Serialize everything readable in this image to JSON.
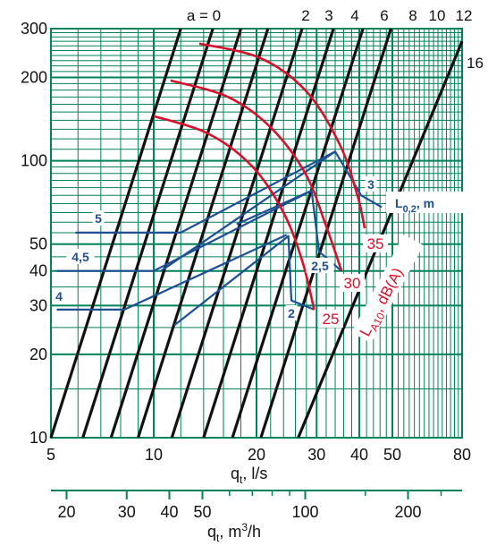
{
  "chart_data": {
    "type": "line",
    "x_scale": "log",
    "y_scale": "log",
    "xlim": [
      5,
      80
    ],
    "ylim": [
      10,
      300
    ],
    "grid": true,
    "grid_color": "#00825a",
    "x_ticks": [
      5,
      10,
      20,
      30,
      40,
      50,
      80
    ],
    "y_ticks": [
      10,
      20,
      30,
      40,
      50,
      100,
      200,
      300
    ],
    "secondary_x_ticks": [
      20,
      30,
      40,
      50,
      100,
      200
    ],
    "xlabel_main": "q",
    "xlabel_sub": "t",
    "xlabel_unit": ", l/s",
    "x2label_main": "q",
    "x2label_sub": "t",
    "x2label_unit": ", m",
    "x2label_sup": "3",
    "x2label_tail": "/h",
    "a_lines": {
      "color": "#111111",
      "series": [
        {
          "name": "a = 0",
          "points": [
            [
              5,
              10
            ],
            [
              12.0,
              300
            ]
          ]
        },
        {
          "name": "2",
          "points": [
            [
              6.2,
              10
            ],
            [
              14.9,
              300
            ]
          ]
        },
        {
          "name": "3",
          "points": [
            [
              7.5,
              10
            ],
            [
              18.0,
              300
            ]
          ]
        },
        {
          "name": "4",
          "points": [
            [
              9.0,
              10
            ],
            [
              21.6,
              300
            ]
          ]
        },
        {
          "name": "6",
          "points": [
            [
              11.3,
              10
            ],
            [
              27.2,
              300
            ]
          ]
        },
        {
          "name": "8",
          "points": [
            [
              14.0,
              10
            ],
            [
              33.6,
              300
            ]
          ]
        },
        {
          "name": "10",
          "points": [
            [
              17.0,
              10
            ],
            [
              41.0,
              300
            ]
          ]
        },
        {
          "name": "12",
          "points": [
            [
              20.6,
              10
            ],
            [
              49.5,
              300
            ]
          ]
        },
        {
          "name": "16",
          "points": [
            [
              26.5,
              10
            ],
            [
              80,
              270
            ]
          ]
        }
      ]
    },
    "noise_curves": {
      "color": "#d8102a",
      "label_main": "L",
      "label_sub": "A10",
      "label_unit": ", dB(A)",
      "series": [
        {
          "name": "25",
          "points": [
            [
              10,
              145
            ],
            [
              14.5,
              125
            ],
            [
              19.5,
              95
            ],
            [
              24,
              65
            ],
            [
              27.3,
              43
            ],
            [
              29.5,
              29
            ]
          ]
        },
        {
          "name": "30",
          "points": [
            [
              11.2,
              195
            ],
            [
              16.5,
              170
            ],
            [
              22,
              132
            ],
            [
              27.8,
              90
            ],
            [
              32,
              58
            ],
            [
              35.5,
              40
            ]
          ]
        },
        {
          "name": "35",
          "points": [
            [
              13.6,
              265
            ],
            [
              20.5,
              235
            ],
            [
              28,
              178
            ],
            [
              35,
              115
            ],
            [
              39.5,
              75
            ],
            [
              41.5,
              57
            ]
          ]
        }
      ]
    },
    "throw_lines": {
      "color": "#1d4f95",
      "label_main": "L",
      "label_sub": "0,2",
      "label_unit": ", m",
      "level_labels": [
        "5",
        "4,5",
        "4",
        "3",
        "2,5",
        "2"
      ],
      "series": [
        {
          "name": "5",
          "points": [
            [
              5.9,
              55
            ],
            [
              12.0,
              55
            ],
            [
              34.0,
              108
            ]
          ]
        },
        {
          "name": "4,5",
          "points": [
            [
              5.2,
              40
            ],
            [
              10.0,
              40
            ],
            [
              29.0,
              78
            ]
          ]
        },
        {
          "name": "4",
          "points": [
            [
              5.2,
              29
            ],
            [
              8.2,
              29
            ],
            [
              24.5,
              54
            ]
          ]
        },
        {
          "name": "2",
          "points": [
            [
              11.5,
              25.5
            ],
            [
              24.8,
              53.5
            ],
            [
              25.3,
              31.3
            ],
            [
              29.5,
              29
            ]
          ]
        },
        {
          "name": "2,5",
          "points": [
            [
              17.5,
              59
            ],
            [
              29.0,
              78
            ],
            [
              30.5,
              47
            ],
            [
              35.5,
              40
            ]
          ]
        },
        {
          "name": "3",
          "points": [
            [
              10.5,
              40
            ],
            [
              34.0,
              108
            ],
            [
              40.5,
              75
            ],
            [
              46.5,
              68
            ]
          ]
        }
      ]
    },
    "secondary_axis": {
      "min": 18,
      "max": 288
    }
  }
}
